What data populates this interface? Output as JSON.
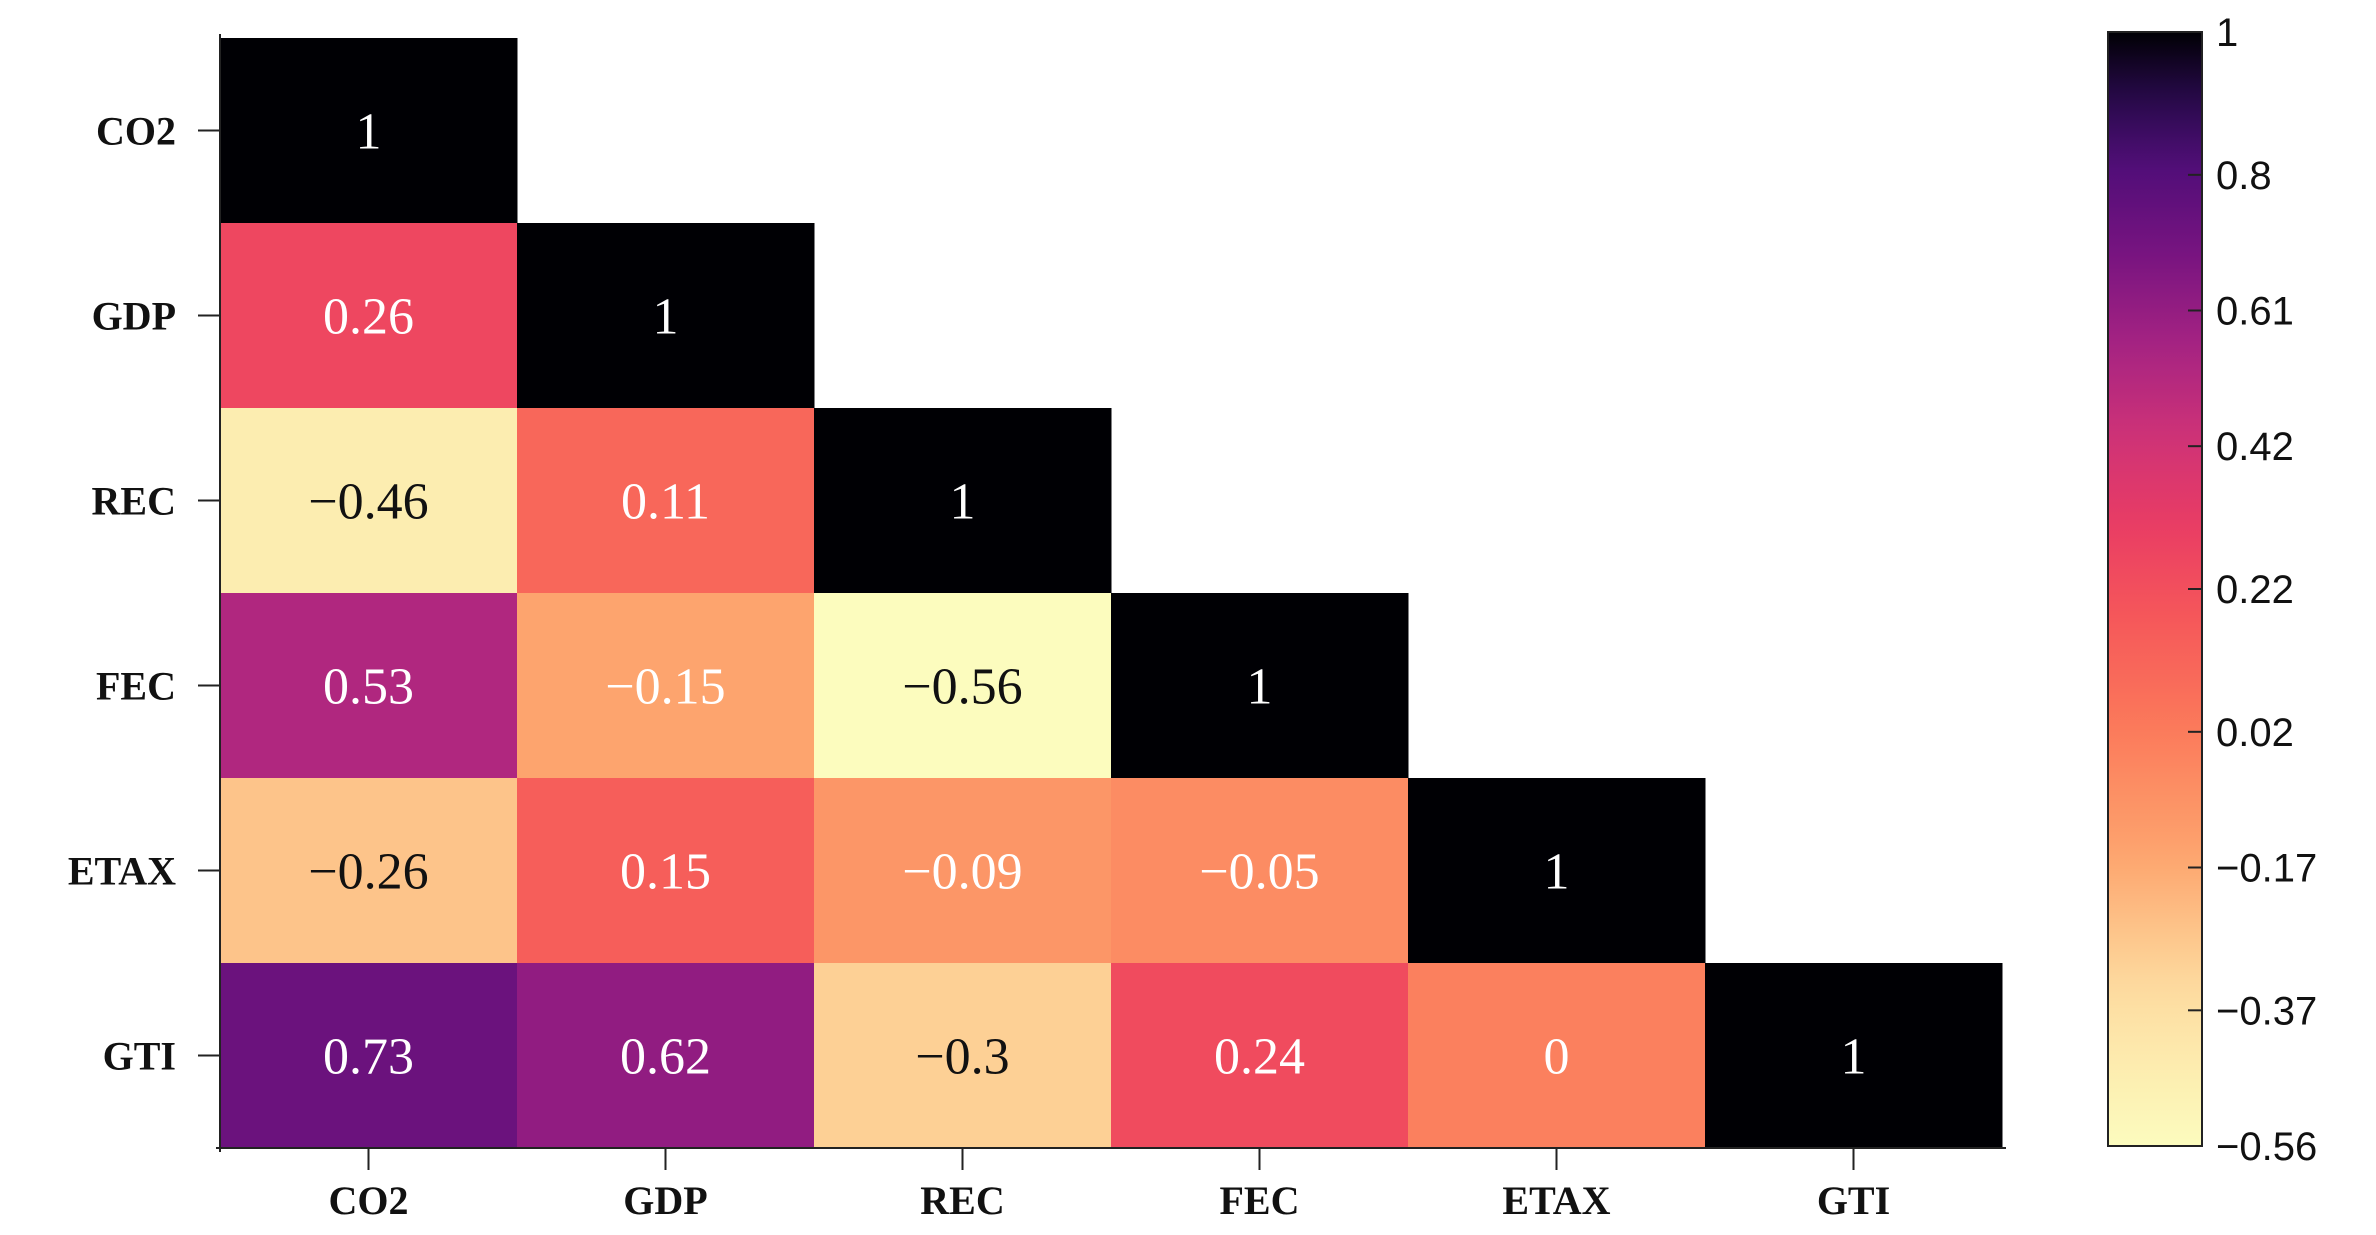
{
  "chart_data": {
    "type": "heatmap",
    "variables": [
      "CO2",
      "GDP",
      "REC",
      "FEC",
      "ETAX",
      "GTI"
    ],
    "x_tick_labels": [
      "CO2",
      "GDP",
      "REC",
      "FEC",
      "ETAX",
      "GTI"
    ],
    "y_tick_labels": [
      "CO2",
      "GDP",
      "REC",
      "FEC",
      "ETAX",
      "GTI"
    ],
    "matrix": [
      [
        1,
        null,
        null,
        null,
        null,
        null
      ],
      [
        0.26,
        1,
        null,
        null,
        null,
        null
      ],
      [
        -0.46,
        0.11,
        1,
        null,
        null,
        null
      ],
      [
        0.53,
        -0.15,
        -0.56,
        1,
        null,
        null
      ],
      [
        -0.26,
        0.15,
        -0.09,
        -0.05,
        1,
        null
      ],
      [
        0.73,
        0.62,
        -0.3,
        0.24,
        0,
        1
      ]
    ],
    "cell_labels": [
      [
        "1",
        null,
        null,
        null,
        null,
        null
      ],
      [
        "0.26",
        "1",
        null,
        null,
        null,
        null
      ],
      [
        "−0.46",
        "0.11",
        "1",
        null,
        null,
        null
      ],
      [
        "0.53",
        "−0.15",
        "−0.56",
        "1",
        null,
        null
      ],
      [
        "−0.26",
        "0.15",
        "−0.09",
        "−0.05",
        "1",
        null
      ],
      [
        "0.73",
        "0.62",
        "−0.3",
        "0.24",
        "0",
        "1"
      ]
    ],
    "triangle": "lower",
    "colormap": "magma",
    "colorbar": {
      "range": [
        -0.56,
        1
      ],
      "position": "right",
      "ticks": [
        1,
        0.8,
        0.61,
        0.42,
        0.22,
        0.02,
        -0.17,
        -0.37,
        -0.56
      ],
      "tick_labels": [
        "1",
        "0.8",
        "0.61",
        "0.42",
        "0.22",
        "0.02",
        "−0.17",
        "−0.37",
        "−0.56"
      ]
    },
    "title": "",
    "xlabel": "",
    "ylabel": ""
  }
}
